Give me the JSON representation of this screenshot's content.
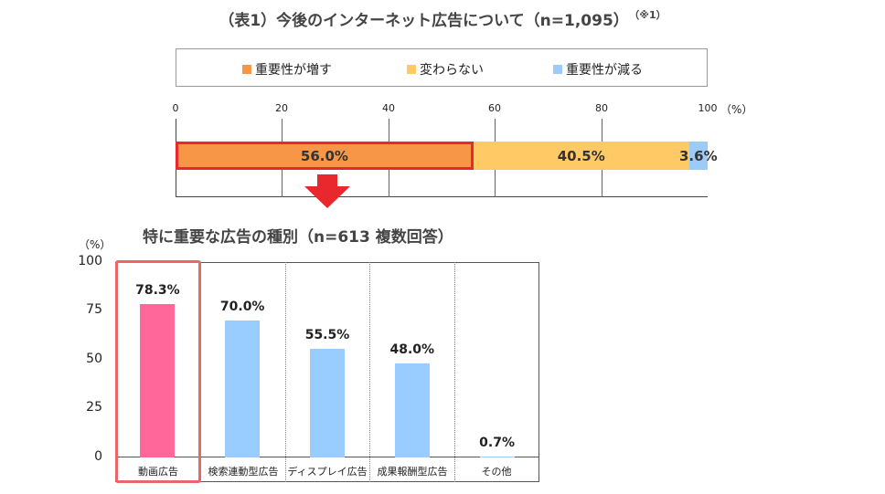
{
  "top_title": "（表1）今後のインターネット広告について（n=1,095）",
  "top_note": "（※1）",
  "colors": {
    "increase": "#f79646",
    "same": "#ffc966",
    "decrease": "#9ccbf8",
    "highlight_bar": "#ff6699",
    "other_bar": "#99ccff",
    "highlight_border": "#e8282c"
  },
  "chart_data": [
    {
      "type": "bar",
      "orientation": "horizontal-stacked",
      "title": "（表1）今後のインターネット広告について（n=1,095）",
      "x_ticks": [
        "0",
        "20",
        "40",
        "60",
        "80",
        "100"
      ],
      "x_unit": "（%）",
      "xlim": [
        0,
        100
      ],
      "legend_position": "top",
      "series": [
        {
          "name": "重要性が増す",
          "values": [
            56.0
          ],
          "label": "56.0%"
        },
        {
          "name": "変わらない",
          "values": [
            40.5
          ],
          "label": "40.5%"
        },
        {
          "name": "重要性が減る",
          "values": [
            3.6
          ],
          "label": "3.6%"
        }
      ]
    },
    {
      "type": "bar",
      "title": "特に重要な広告の種別（n=613 複数回答）",
      "y_unit": "（%）",
      "ylim": [
        0,
        100
      ],
      "y_ticks": [
        "100",
        "75",
        "50",
        "25",
        "0"
      ],
      "categories": [
        "動画広告",
        "検索連動型広告",
        "ディスプレイ広告",
        "成果報酬型広告",
        "その他"
      ],
      "values": [
        78.3,
        70.0,
        55.5,
        48.0,
        0.7
      ],
      "labels": [
        "78.3%",
        "70.0%",
        "55.5%",
        "48.0%",
        "0.7%"
      ],
      "highlighted_category": "動画広告"
    }
  ]
}
